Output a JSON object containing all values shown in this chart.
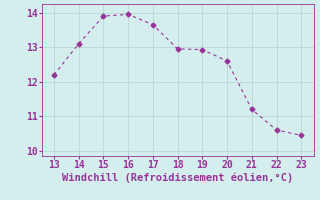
{
  "x": [
    13,
    14,
    15,
    16,
    17,
    18,
    19,
    20,
    21,
    22,
    23
  ],
  "y": [
    12.2,
    13.1,
    13.9,
    13.95,
    13.65,
    12.95,
    12.93,
    12.6,
    11.2,
    10.6,
    10.45
  ],
  "line_color": "#993399",
  "marker": "D",
  "marker_size": 2.5,
  "bg_color": "#d4eeed",
  "grid_color": "#b8d8d5",
  "xlabel": "Windchill (Refroidissement éolien,°C)",
  "xlabel_color": "#993399",
  "xlabel_fontsize": 7.5,
  "tick_color": "#993399",
  "tick_fontsize": 7,
  "xlim": [
    12.5,
    23.5
  ],
  "ylim": [
    9.85,
    14.25
  ],
  "xticks": [
    13,
    14,
    15,
    16,
    17,
    18,
    19,
    20,
    21,
    22,
    23
  ],
  "yticks": [
    10,
    11,
    12,
    13,
    14
  ],
  "spine_color": "#993399"
}
